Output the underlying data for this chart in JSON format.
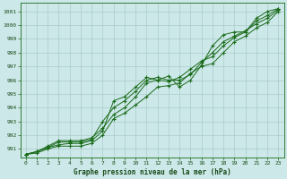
{
  "x": [
    0,
    1,
    2,
    3,
    4,
    5,
    6,
    7,
    8,
    9,
    10,
    11,
    12,
    13,
    14,
    15,
    16,
    17,
    18,
    19,
    20,
    21,
    22,
    23
  ],
  "line1": [
    990.6,
    990.8,
    991.1,
    991.3,
    991.4,
    991.4,
    991.6,
    992.3,
    994.5,
    994.8,
    995.5,
    996.2,
    996.0,
    995.9,
    996.2,
    996.8,
    997.4,
    997.7,
    998.5,
    999.1,
    999.5,
    1000.3,
    1000.7,
    1001.2
  ],
  "line2": [
    990.6,
    990.8,
    991.2,
    991.6,
    991.6,
    991.6,
    991.8,
    992.5,
    993.5,
    994.0,
    994.8,
    995.8,
    996.0,
    996.3,
    995.5,
    996.0,
    997.1,
    998.5,
    999.3,
    999.5,
    999.5,
    1000.5,
    1001.0,
    1001.2
  ],
  "line3": [
    990.6,
    990.7,
    991.0,
    991.2,
    991.2,
    991.2,
    991.4,
    992.0,
    993.2,
    993.6,
    994.2,
    994.8,
    995.5,
    995.6,
    995.8,
    996.5,
    997.0,
    997.2,
    998.0,
    998.8,
    999.2,
    999.8,
    1000.2,
    1001.0
  ],
  "line4": [
    990.6,
    990.8,
    991.1,
    991.5,
    991.5,
    991.5,
    991.7,
    993.0,
    994.0,
    994.5,
    995.2,
    996.0,
    996.2,
    996.0,
    996.0,
    996.4,
    997.3,
    998.0,
    998.8,
    999.2,
    999.6,
    1000.1,
    1000.5,
    1001.1
  ],
  "line_color": "#1a6b1a",
  "bg_color": "#cce8e8",
  "grid_color": "#aacccc",
  "xlabel": "Graphe pression niveau de la mer (hPa)",
  "ylim_min": 990.4,
  "ylim_max": 1001.6,
  "yticks": [
    991,
    992,
    993,
    994,
    995,
    996,
    997,
    998,
    999,
    1000,
    1001
  ],
  "xticks": [
    0,
    1,
    2,
    3,
    4,
    5,
    6,
    7,
    8,
    9,
    10,
    11,
    12,
    13,
    14,
    15,
    16,
    17,
    18,
    19,
    20,
    21,
    22,
    23
  ]
}
